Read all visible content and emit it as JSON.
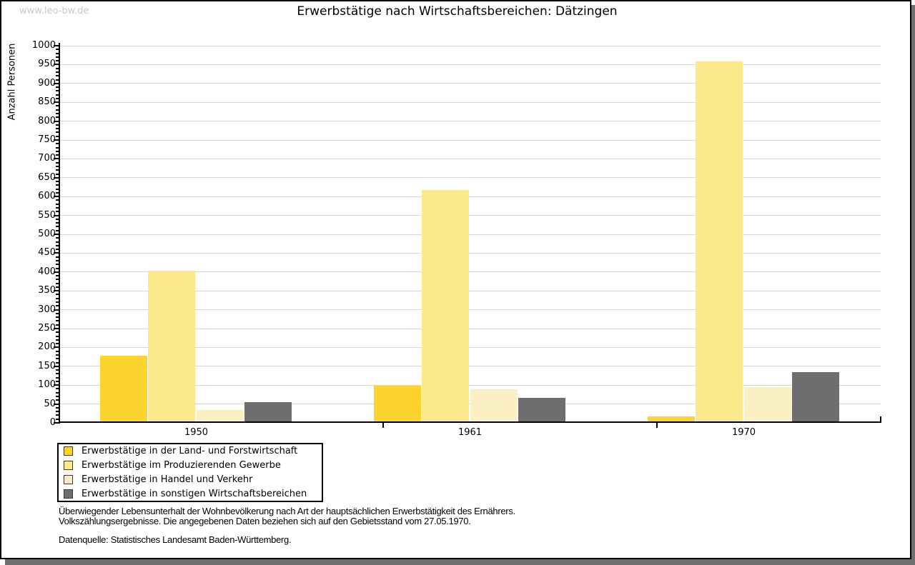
{
  "page": {
    "watermark": "www.leo-bw.de",
    "title": "Erwerbstätige nach Wirtschaftsbereichen: Dätzingen"
  },
  "chart_data": {
    "type": "bar",
    "title": "Erwerbstätige nach Wirtschaftsbereichen: Dätzingen",
    "xlabel": "",
    "ylabel": "Anzahl Personen",
    "categories": [
      "1950",
      "1961",
      "1970"
    ],
    "series": [
      {
        "name": "Erwerbstätige in der Land- und Forstwirtschaft",
        "color": "#fdd32f",
        "values": [
          175,
          95,
          13
        ]
      },
      {
        "name": "Erwerbstätige im Produzierenden Gewerbe",
        "color": "#fce98b",
        "values": [
          400,
          614,
          955
        ]
      },
      {
        "name": "Erwerbstätige in Handel und Verkehr",
        "color": "#faf0c3",
        "values": [
          30,
          86,
          90
        ]
      },
      {
        "name": "Erwerbstätige in sonstigen Wirtschaftsbereichen",
        "color": "#6e6e6e",
        "values": [
          52,
          63,
          131
        ]
      }
    ],
    "ylim": [
      0,
      1000
    ],
    "ytick_step": 50,
    "minor_tick_step": 10,
    "grid": true,
    "legend_position": "bottom-left"
  },
  "footnotes": {
    "line1": "Überwiegender Lebensunterhalt der Wohnbevölkerung nach Art der hauptsächlichen Erwerbstätigkeit des Ernährers.",
    "line2": "Volkszählungsergebnisse. Die angegebenen Daten beziehen sich auf den Gebietsstand vom 27.05.1970.",
    "source": "Datenquelle: Statistisches Landesamt Baden-Württemberg."
  },
  "colors": {
    "grid": "#d8d8d8",
    "axis": "#000000",
    "watermark": "#c8c8c8",
    "shadow": "#6f6f6f",
    "background": "#ffffff"
  }
}
